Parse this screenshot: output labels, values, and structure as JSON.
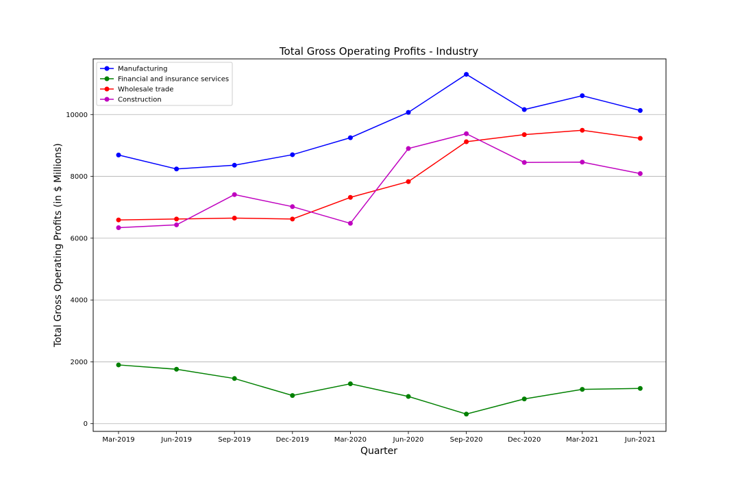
{
  "chart_data": {
    "type": "line",
    "title": "Total Gross Operating Profits - Industry",
    "xlabel": "Quarter",
    "ylabel": "Total Gross Operating Profits (in $ Millions)",
    "categories": [
      "Mar-2019",
      "Jun-2019",
      "Sep-2019",
      "Dec-2019",
      "Mar-2020",
      "Jun-2020",
      "Sep-2020",
      "Dec-2020",
      "Mar-2021",
      "Jun-2021"
    ],
    "ylim": [
      -250,
      11800
    ],
    "yticks": [
      0,
      2000,
      4000,
      6000,
      8000,
      10000
    ],
    "grid": "horizontal",
    "legend_position": "top-left",
    "series": [
      {
        "name": "Manufacturing",
        "color": "#0000ff",
        "values": [
          8690,
          8240,
          8360,
          8700,
          9250,
          10070,
          11300,
          10160,
          10610,
          10130
        ]
      },
      {
        "name": "Financial and insurance services",
        "color": "#008000",
        "values": [
          1900,
          1760,
          1460,
          910,
          1290,
          880,
          310,
          800,
          1110,
          1140
        ]
      },
      {
        "name": "Wholesale trade",
        "color": "#ff0000",
        "values": [
          6590,
          6620,
          6650,
          6620,
          7320,
          7830,
          9120,
          9350,
          9490,
          9230
        ]
      },
      {
        "name": "Construction",
        "color": "#bf00bf",
        "values": [
          6340,
          6430,
          7410,
          7020,
          6480,
          8900,
          9380,
          8450,
          8460,
          8090
        ]
      }
    ]
  }
}
